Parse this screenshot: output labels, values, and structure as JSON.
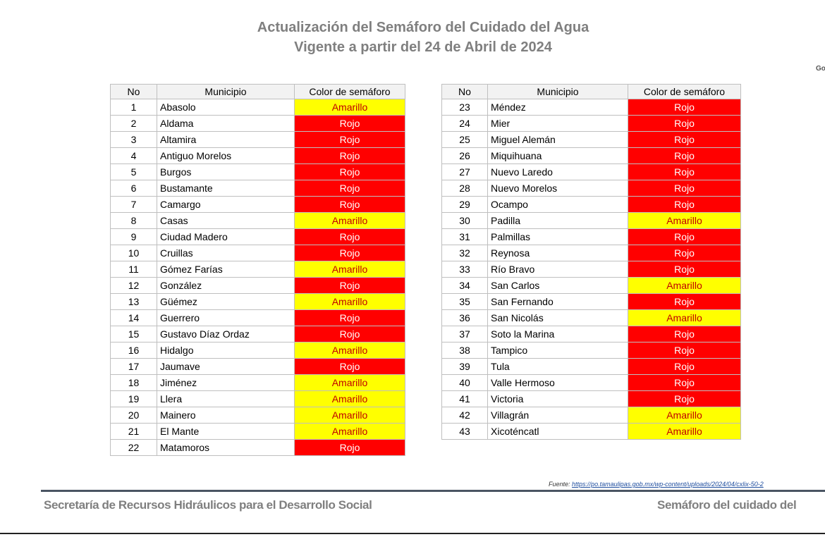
{
  "header": {
    "title": "Actualización del Semáforo del Cuidado del Agua",
    "subtitle": "Vigente a partir del 24 de Abril de 2024",
    "corner_text": "Go"
  },
  "status_colors": {
    "Amarillo": "#ffff00",
    "Rojo": "#ff0000"
  },
  "status_text_colors": {
    "Amarillo": "#c00000",
    "Rojo": "#ffffff"
  },
  "tables": [
    {
      "columns": [
        "No",
        "Municipio",
        "Color de semáforo"
      ],
      "rows": [
        [
          1,
          "Abasolo",
          "Amarillo"
        ],
        [
          2,
          "Aldama",
          "Rojo"
        ],
        [
          3,
          "Altamira",
          "Rojo"
        ],
        [
          4,
          "Antiguo Morelos",
          "Rojo"
        ],
        [
          5,
          "Burgos",
          "Rojo"
        ],
        [
          6,
          "Bustamante",
          "Rojo"
        ],
        [
          7,
          "Camargo",
          "Rojo"
        ],
        [
          8,
          "Casas",
          "Amarillo"
        ],
        [
          9,
          "Ciudad Madero",
          "Rojo"
        ],
        [
          10,
          "Cruillas",
          "Rojo"
        ],
        [
          11,
          "Gómez Farías",
          "Amarillo"
        ],
        [
          12,
          "González",
          "Rojo"
        ],
        [
          13,
          "Güémez",
          "Amarillo"
        ],
        [
          14,
          "Guerrero",
          "Rojo"
        ],
        [
          15,
          "Gustavo Díaz Ordaz",
          "Rojo"
        ],
        [
          16,
          "Hidalgo",
          "Amarillo"
        ],
        [
          17,
          "Jaumave",
          "Rojo"
        ],
        [
          18,
          "Jiménez",
          "Amarillo"
        ],
        [
          19,
          "Llera",
          "Amarillo"
        ],
        [
          20,
          "Mainero",
          "Amarillo"
        ],
        [
          21,
          "El Mante",
          "Amarillo"
        ],
        [
          22,
          "Matamoros",
          "Rojo"
        ]
      ]
    },
    {
      "columns": [
        "No",
        "Municipio",
        "Color de semáforo"
      ],
      "rows": [
        [
          23,
          "Méndez",
          "Rojo"
        ],
        [
          24,
          "Mier",
          "Rojo"
        ],
        [
          25,
          "Miguel Alemán",
          "Rojo"
        ],
        [
          26,
          "Miquihuana",
          "Rojo"
        ],
        [
          27,
          "Nuevo Laredo",
          "Rojo"
        ],
        [
          28,
          "Nuevo Morelos",
          "Rojo"
        ],
        [
          29,
          "Ocampo",
          "Rojo"
        ],
        [
          30,
          "Padilla",
          "Amarillo"
        ],
        [
          31,
          "Palmillas",
          "Rojo"
        ],
        [
          32,
          "Reynosa",
          "Rojo"
        ],
        [
          33,
          "Río Bravo",
          "Rojo"
        ],
        [
          34,
          "San Carlos",
          "Amarillo"
        ],
        [
          35,
          "San Fernando",
          "Rojo"
        ],
        [
          36,
          "San Nicolás",
          "Amarillo"
        ],
        [
          37,
          "Soto la Marina",
          "Rojo"
        ],
        [
          38,
          "Tampico",
          "Rojo"
        ],
        [
          39,
          "Tula",
          "Rojo"
        ],
        [
          40,
          "Valle Hermoso",
          "Rojo"
        ],
        [
          41,
          "Victoria",
          "Rojo"
        ],
        [
          42,
          "Villagrán",
          "Amarillo"
        ],
        [
          43,
          "Xicoténcatl",
          "Amarillo"
        ]
      ]
    }
  ],
  "source": {
    "label": "Fuente:",
    "url": "https://po.tamaulipas.gob.mx/wp-content/uploads/2024/04/cxlix-50-2"
  },
  "footer": {
    "left": "Secretaría de Recursos Hidráulicos para el Desarrollo Social",
    "right": "Semáforo del cuidado del"
  }
}
